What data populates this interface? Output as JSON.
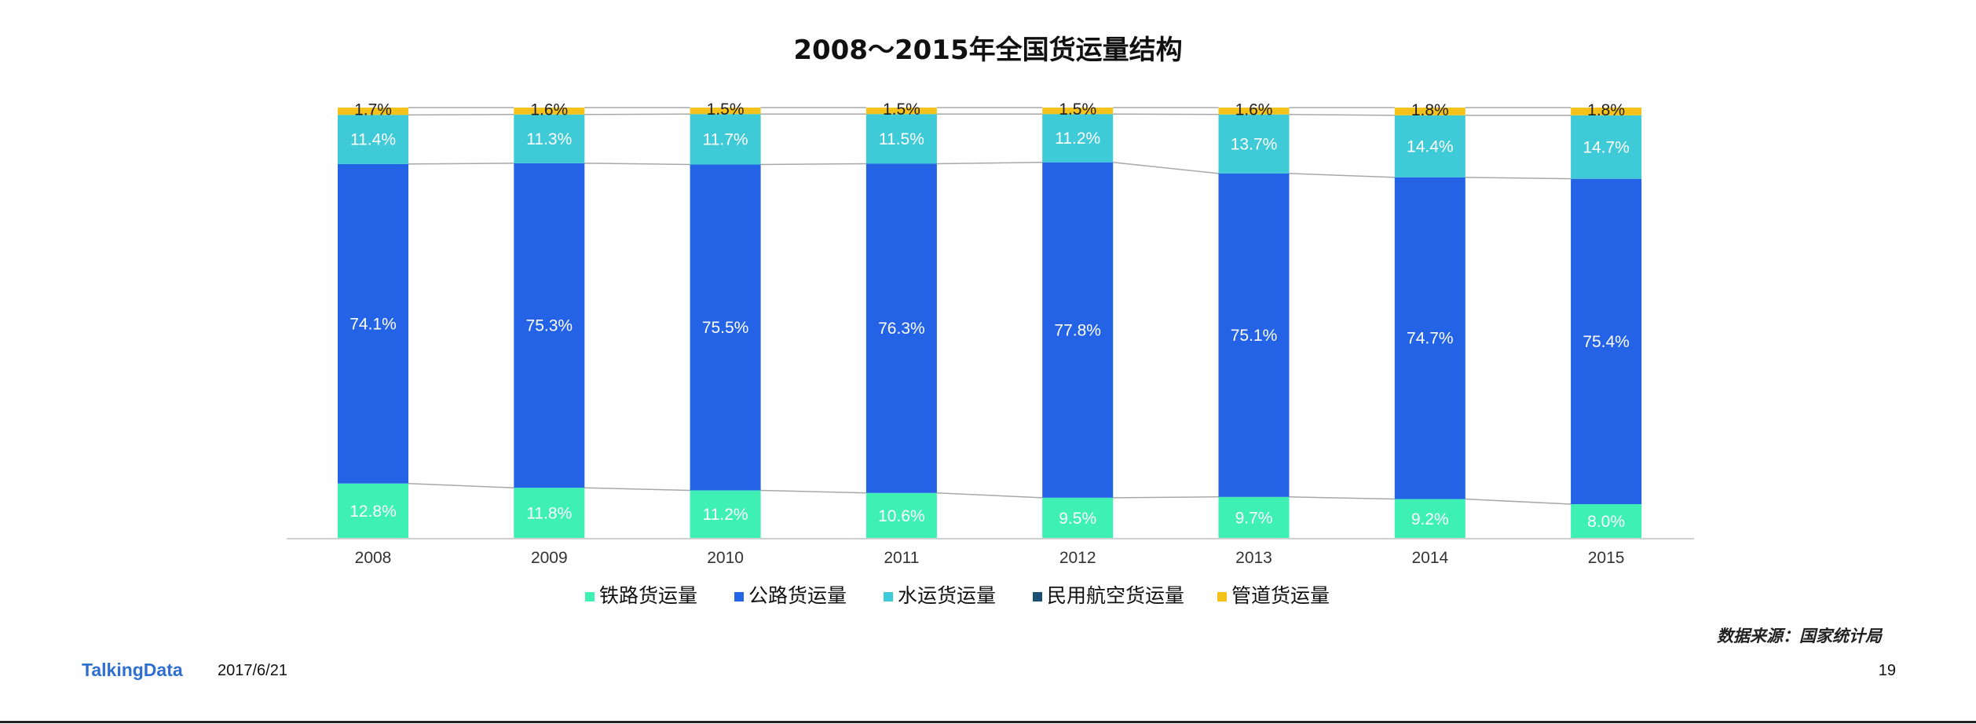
{
  "chart_data": {
    "type": "bar",
    "stacked": true,
    "normalized": true,
    "title": "2008～2015年全国货运量结构",
    "categories": [
      "2008",
      "2009",
      "2010",
      "2011",
      "2012",
      "2013",
      "2014",
      "2015"
    ],
    "series": [
      {
        "name": "铁路货运量",
        "color": "#3ef0b4",
        "values": [
          12.8,
          11.8,
          11.2,
          10.6,
          9.5,
          9.7,
          9.2,
          8.0
        ],
        "labels": [
          "12.8%",
          "11.8%",
          "11.2%",
          "10.6%",
          "9.5%",
          "9.7%",
          "9.2%",
          "8.0%"
        ]
      },
      {
        "name": "公路货运量",
        "color": "#2462e6",
        "values": [
          74.1,
          75.3,
          75.5,
          76.3,
          77.8,
          75.1,
          74.7,
          75.4
        ],
        "labels": [
          "74.1%",
          "75.3%",
          "75.5%",
          "76.3%",
          "77.8%",
          "75.1%",
          "74.7%",
          "75.4%"
        ]
      },
      {
        "name": "水运货运量",
        "color": "#3ecad6",
        "values": [
          11.4,
          11.3,
          11.7,
          11.5,
          11.2,
          13.7,
          14.4,
          14.7
        ],
        "labels": [
          "11.4%",
          "11.3%",
          "11.7%",
          "11.5%",
          "11.2%",
          "13.7%",
          "14.4%",
          "14.7%"
        ]
      },
      {
        "name": "民用航空货运量",
        "color": "#1b4f72",
        "values": [
          0,
          0,
          0,
          0,
          0,
          0,
          0,
          0
        ],
        "labels": [
          "",
          "",
          "",
          "",
          "",
          "",
          "",
          ""
        ]
      },
      {
        "name": "管道货运量",
        "color": "#f5c21b",
        "values": [
          1.7,
          1.6,
          1.5,
          1.5,
          1.5,
          1.6,
          1.8,
          1.8
        ],
        "labels": [
          "1.7%",
          "1.6%",
          "1.5%",
          "1.5%",
          "1.5%",
          "1.6%",
          "1.8%",
          "1.8%"
        ]
      }
    ],
    "ylim": [
      0,
      100
    ],
    "series_lines": true,
    "grid": false,
    "legend_position": "bottom"
  },
  "source_note": "数据来源：国家统计局",
  "footer": {
    "logo_text": "TalkingData",
    "date": "2017/6/21",
    "page_number": "19"
  }
}
